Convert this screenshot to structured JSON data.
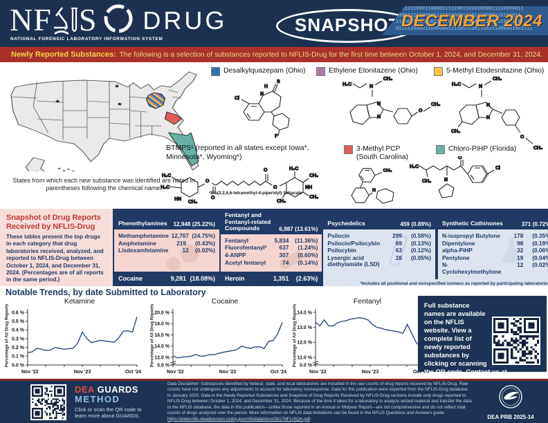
{
  "header": {
    "logo_n": "N",
    "logo_f": "F",
    "logo_s": "S",
    "logo_sub": "NATIONAL FORENSIC LABORATORY INFORMATION SYSTEM",
    "logo_drug": "DRUG",
    "snapshot_badge": "SNAPSHOT",
    "issue": "DECEMBER 2024",
    "binary_rows": [
      "10011110001100001111100110101000011110000011",
      "1000111110000111101100011001110000110101011",
      "1110001110000110100100011000001110101001100",
      "01111100001100000011110101001100111000001001111"
    ]
  },
  "banner": {
    "label": "Newly Reported Substances:",
    "text": "The following is a selection of substances reported to NFLIS-Drug for the first time between October 1, 2024, and December 31, 2024."
  },
  "map": {
    "caption": "States from which each new substance was identified are noted in parentheses following the chemical name.",
    "asterisk": "*"
  },
  "newly_reported": {
    "legend": [
      {
        "name": "Desalkylquazepam (Ohio)",
        "color": "#2e74b5"
      },
      {
        "name": "Ethylene Etonitazene (Ohio)",
        "color": "#a97ca5"
      },
      {
        "name": "5-Methyl Etodesnitazine (Ohio)",
        "color": "#f6c242"
      },
      {
        "name": "3-Methyl PCP (South Carolina)",
        "color": "#e05c55"
      },
      {
        "name": "Chloro-PiHP (Florida)",
        "color": "#66b2a7"
      }
    ],
    "btmps_label": "BTMPS¹ (reported in all states except Iowa*, Minnesota*, Wyoming*)",
    "btmps_footnote": "¹Bis(2,2,6,6-tetramethyl-4-piperidyl) Sebacate"
  },
  "structures": {
    "s1": [
      "H",
      "N",
      "S",
      "Cl",
      "F"
    ],
    "s2": [
      "H₃C",
      "CH₃",
      "N",
      "N",
      "N",
      "O",
      "CH₃"
    ],
    "s3": [
      "H₃C",
      "CH₃",
      "N",
      "N",
      "N",
      "CH₃",
      "O",
      "CH₃"
    ],
    "s4": [
      "H₃C",
      "H₃C",
      "HN",
      "CH₃",
      "O",
      "O",
      "O",
      "O",
      "H₃C",
      "CH₃",
      "NH",
      "CH₃",
      "CH₃"
    ],
    "s5": [
      "CH₃",
      "N"
    ],
    "s6": [
      "H₃C",
      "CH₃",
      "O",
      "Cl",
      "N"
    ]
  },
  "snapshot": {
    "title": "Snapshot of Drug Reports Received by NFLIS-Drug",
    "description": "These tables present the top drugs in each category that drug laboratories received, analyzed, and reported to NFLIS-Drug between October 1, 2024, and December 31, 2024. (Percentages are of all reports in the same period.)",
    "footnote": "²Includes all positional and nonspecified isomers as reported by participating laboratories.",
    "tables": [
      {
        "header": {
          "name": "Phenethylamines",
          "count": "12,948",
          "pct": "(25.22%)"
        },
        "rows": [
          [
            "Methamphetamine",
            "12,707",
            "(24.75%)"
          ],
          [
            "Amphetamine",
            "219",
            "(0.43%)"
          ],
          [
            "Lisdexamfetamine",
            "12",
            "(0.02%)"
          ]
        ],
        "footer": {
          "name": "Cocaine",
          "count": "9,281",
          "pct": "(18.08%)"
        }
      },
      {
        "header": {
          "name": "Fentanyl and Fentanyl-related Compounds",
          "count": "6,987",
          "pct": "(13.61%)"
        },
        "rows": [
          [
            "Fentanyl",
            "5,834",
            "(11.36%)"
          ],
          [
            "Fluorofentanyl²",
            "637",
            "(1.24%)"
          ],
          [
            "4-ANPP",
            "307",
            "(0.60%)"
          ],
          [
            "Acetyl fentanyl",
            "74",
            "(0.14%)"
          ]
        ],
        "footer": {
          "name": "Heroin",
          "count": "1,351",
          "pct": "(2.63%)"
        }
      },
      {
        "header": {
          "name": "Psychedelics",
          "count": "459",
          "pct": "(0.89%)"
        },
        "rows": [
          [
            "Psilocin",
            "299",
            "(0.58%)"
          ],
          [
            "Psilocin/Psilocybin",
            "69",
            "(0.13%)"
          ],
          [
            "Psilocybin",
            "63",
            "(0.12%)"
          ],
          [
            "Lysergic acid diethylamide (LSD)",
            "28",
            "(0.05%)"
          ]
        ]
      },
      {
        "header": {
          "name": "Synthetic Cathinones",
          "count": "371",
          "pct": "(0.72%)"
        },
        "rows": [
          [
            "N-isopropyl Butylone",
            "178",
            "(0.35%)"
          ],
          [
            "Dipentylone",
            "98",
            "(0.19%)"
          ],
          [
            "alpha-PiHP",
            "32",
            "(0.06%)"
          ],
          [
            "Pentylone",
            "19",
            "(0.04%)"
          ],
          [
            "N-Cyclohexylmethylone",
            "12",
            "(0.02%)"
          ]
        ]
      }
    ]
  },
  "trends": {
    "heading": "Notable Trends, by date Submitted to Laboratory",
    "info_box": {
      "before_link": "Full substance names are available on the NFLIS website. View a complete list of newly reported substances by clicking or scanning the QR code. Contact us at ",
      "link": "NFLIS@dea.gov",
      "after_link": "."
    }
  },
  "chart_data": [
    {
      "type": "line",
      "title": "Ketamine",
      "ylabel": "Percentage of All Drug Reports",
      "x_ticks": [
        "Nov '22",
        "Nov '23",
        "Oct '24"
      ],
      "axis_break": false,
      "y_plot_min": 0,
      "y_plot_max": 0.6,
      "y_ticks": [
        {
          "v": 0,
          "label": "0.0 %"
        },
        {
          "v": 0.1,
          "label": "0.1 %"
        },
        {
          "v": 0.2,
          "label": "0.2 %"
        },
        {
          "v": 0.3,
          "label": "0.3 %"
        },
        {
          "v": 0.4,
          "label": "0.4 %"
        },
        {
          "v": 0.5,
          "label": "0.5 %"
        },
        {
          "v": 0.6,
          "label": "0.6 %"
        }
      ],
      "values": [
        0.14,
        0.15,
        0.19,
        0.18,
        0.165,
        0.17,
        0.2,
        0.19,
        0.18,
        0.185,
        0.19,
        0.25,
        0.375,
        0.3,
        0.255,
        0.27,
        0.28,
        0.275,
        0.265,
        0.26,
        0.31,
        0.385,
        0.39,
        0.375,
        0.55
      ]
    },
    {
      "type": "line",
      "title": "Cocaine",
      "ylabel": "Percentage of All Drug Reports",
      "x_ticks": [
        "Nov '22",
        "Nov '23",
        "Oct '24"
      ],
      "axis_break": true,
      "y_plot_min": 12,
      "y_plot_max": 20,
      "y_ticks": [
        {
          "v": 0,
          "label": "0.0 %"
        },
        {
          "v": 12,
          "label": "12.0 %"
        },
        {
          "v": 14,
          "label": "14.0 %"
        },
        {
          "v": 16,
          "label": "16.0 %"
        },
        {
          "v": 18,
          "label": "18.0 %"
        },
        {
          "v": 20,
          "label": "20.0 %"
        }
      ],
      "values": [
        12.3,
        11.9,
        12.05,
        12.1,
        12.2,
        12.5,
        12.2,
        12.25,
        12.5,
        12.45,
        12.7,
        12.9,
        13.05,
        13.2,
        13.35,
        14.0,
        13.75,
        13.6,
        13.85,
        13.9,
        13.55,
        14.85,
        15.0,
        16.2,
        18.2
      ]
    },
    {
      "type": "line",
      "title": "Fentanyl",
      "ylabel": "Percentage of All Drug Reports",
      "x_ticks": [
        "Nov '22",
        "Nov '23",
        "Oct '24"
      ],
      "axis_break": true,
      "y_plot_min": 11,
      "y_plot_max": 14,
      "y_ticks": [
        {
          "v": 0,
          "label": "0.0 %"
        },
        {
          "v": 11,
          "label": "11.0 %"
        },
        {
          "v": 12,
          "label": "12.0 %"
        },
        {
          "v": 13,
          "label": "13.0 %"
        },
        {
          "v": 14,
          "label": "14.0 %"
        }
      ],
      "values": [
        13.35,
        13.1,
        13.5,
        13.1,
        13.1,
        13.3,
        13.4,
        13.45,
        13.55,
        13.6,
        13.65,
        13.6,
        13.5,
        13.2,
        13.0,
        12.95,
        12.85,
        12.8,
        12.75,
        12.7,
        12.6,
        13.2,
        12.6,
        12.0,
        11.7,
        11.72
      ]
    }
  ],
  "footer": {
    "guards_dea": "DEA",
    "guards_guards": "GUARDS",
    "guards_method": "METHOD",
    "guards_caption": "Click or scan the QR code to learn more about GUARDS.",
    "disclaimer": "Data Disclaimer: Substances identified by federal, state, and local laboratories are included in the raw counts of drug reports received by NFLIS-Drug. Raw counts have not undergone any adjustments to account for laboratory nonresponse. Data for this publication were exported from the NFLIS-Drug database in January 2025. Data in the Newly Reported Substances and Snapshot of Drug Reports Received by NFLIS-Drug sections include only drugs reported to NFLIS-Drug between October 1, 2024, and December 31, 2024. Because of the time it takes for a laboratory to analyze seized material and transfer the data to the NFLIS database, the data in this publication—unlike those reported in an Annual or Midyear Report—are not comprehensive and do not reflect total counts of drugs analyzed over the period. More information on NFLIS data limitations can be found in the NFLIS Questions and Answers guide: ",
    "disclaimer_link": "https://www.nflis.deadiversion.usdoj.gov/nflisdata/docs/2k17NFLISQA.pdf",
    "disclaimer_end": ".",
    "prb": "DEA PRB 2025-14"
  }
}
